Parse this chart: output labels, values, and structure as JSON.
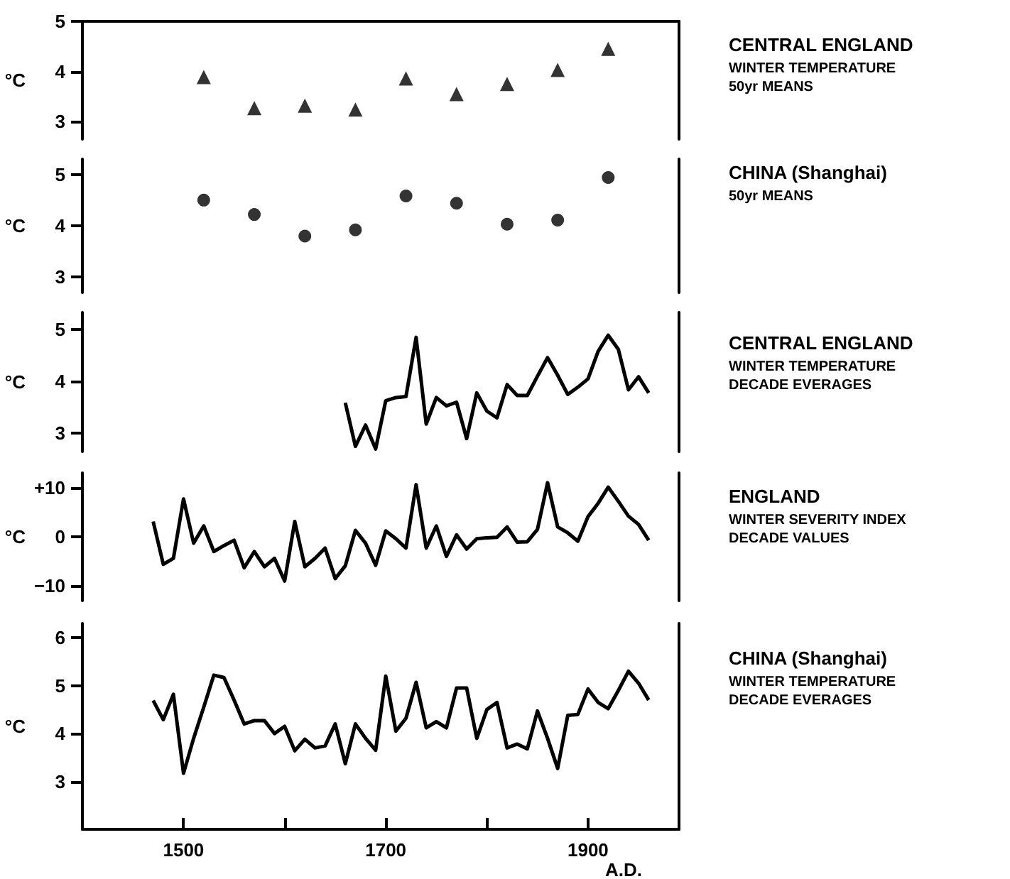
{
  "chart_data": [
    {
      "type": "scatter",
      "annotations": [
        "CENTRAL ENGLAND",
        "WINTER TEMPERATURE\n50yr MEANS"
      ],
      "ylabel": "°C",
      "marker": "triangle",
      "tick_labels": "y",
      "xlim": [
        1400,
        1990
      ],
      "ylim": [
        2.65,
        5
      ],
      "yticks": [
        3,
        4,
        5
      ],
      "x": [
        1520,
        1570,
        1620,
        1670,
        1720,
        1770,
        1820,
        1870,
        1920
      ],
      "series": [
        {
          "color": "#000000",
          "values": [
            3.89,
            3.27,
            3.32,
            3.24,
            3.86,
            3.55,
            3.75,
            4.03,
            4.45
          ]
        }
      ]
    },
    {
      "type": "scatter",
      "annotations": [
        "CHINA (Shanghai)",
        "50yr MEANS"
      ],
      "ylabel": "°C",
      "marker": "circle",
      "tick_labels": "y",
      "xlim": [
        1400,
        1990
      ],
      "ylim": [
        2.7,
        5.3
      ],
      "yticks": [
        3,
        4,
        5
      ],
      "x": [
        1520,
        1570,
        1620,
        1670,
        1720,
        1770,
        1820,
        1870,
        1920
      ],
      "series": [
        {
          "color": "#000000",
          "values": [
            4.5,
            4.22,
            3.8,
            3.92,
            4.58,
            4.44,
            4.03,
            4.11,
            4.94
          ]
        }
      ]
    },
    {
      "type": "line",
      "annotations": [
        "CENTRAL ENGLAND",
        "WINTER TEMPERATURE\nDECADE EVERAGES"
      ],
      "ylabel": "°C",
      "tick_labels": "y",
      "xlim": [
        1400,
        1990
      ],
      "ylim": [
        2.65,
        5.33
      ],
      "yticks": [
        3,
        4,
        5
      ],
      "x": [
        1660,
        1670,
        1680,
        1690,
        1700,
        1710,
        1720,
        1730,
        1740,
        1750,
        1760,
        1770,
        1780,
        1790,
        1800,
        1810,
        1820,
        1830,
        1840,
        1850,
        1860,
        1870,
        1880,
        1890,
        1900,
        1910,
        1920,
        1930,
        1940,
        1950,
        1960
      ],
      "series": [
        {
          "color": "#000000",
          "values": [
            3.59,
            2.75,
            3.16,
            2.7,
            3.63,
            3.69,
            3.71,
            4.85,
            3.18,
            3.69,
            3.53,
            3.6,
            2.9,
            3.78,
            3.43,
            3.3,
            3.94,
            3.73,
            3.73,
            4.1,
            4.46,
            4.12,
            3.75,
            3.89,
            4.05,
            4.58,
            4.89,
            4.62,
            3.84,
            4.09,
            3.78
          ]
        }
      ]
    },
    {
      "type": "line",
      "annotations": [
        "ENGLAND",
        "WINTER SEVERITY INDEX\nDECADE VALUES"
      ],
      "ylabel": "°C",
      "tick_labels": "y",
      "xlim": [
        1400,
        1990
      ],
      "ylim": [
        -13,
        13
      ],
      "yticks": [
        {
          "value": -10,
          "label": "−10"
        },
        0,
        {
          "value": 10,
          "label": "+10"
        }
      ],
      "x": [
        1470,
        1480,
        1490,
        1500,
        1510,
        1520,
        1530,
        1540,
        1550,
        1560,
        1570,
        1580,
        1590,
        1600,
        1610,
        1620,
        1630,
        1640,
        1650,
        1660,
        1670,
        1680,
        1690,
        1700,
        1710,
        1720,
        1730,
        1740,
        1750,
        1760,
        1770,
        1780,
        1790,
        1800,
        1810,
        1820,
        1830,
        1840,
        1850,
        1860,
        1870,
        1880,
        1890,
        1900,
        1910,
        1920,
        1930,
        1940,
        1950,
        1960
      ],
      "series": [
        {
          "color": "#000000",
          "values": [
            3.1,
            -5.6,
            -4.4,
            7.7,
            -1.3,
            2.2,
            -3,
            -1.8,
            -0.7,
            -6.3,
            -3,
            -6.1,
            -4.4,
            -9,
            3.1,
            -6.1,
            -4.4,
            -2.3,
            -8.5,
            -5.9,
            1.3,
            -1.3,
            -5.8,
            1.2,
            -0.4,
            -2.3,
            10.6,
            -2.3,
            2.2,
            -4,
            0.4,
            -2.5,
            -0.4,
            -0.2,
            -0.1,
            2,
            -1.1,
            -1,
            1.5,
            11,
            2,
            0.8,
            -0.9,
            4.1,
            6.8,
            10.1,
            7.2,
            4.2,
            2.5,
            -0.7
          ]
        }
      ]
    },
    {
      "type": "line",
      "annotations": [
        "CHINA (Shanghai)",
        "WINTER TEMPERATURE\nDECADE EVERAGES"
      ],
      "ylabel": "°C",
      "xlabel": "A.D.",
      "xlim": [
        1400,
        1990
      ],
      "ylim": [
        2,
        6.3
      ],
      "yticks": [
        3,
        4,
        5,
        6
      ],
      "xticks": [
        1500,
        {
          "value": 1600,
          "label": null
        },
        1700,
        {
          "value": 1800,
          "label": null
        },
        1900
      ],
      "x": [
        1470,
        1480,
        1490,
        1500,
        1510,
        1520,
        1530,
        1540,
        1550,
        1560,
        1570,
        1580,
        1590,
        1600,
        1610,
        1620,
        1630,
        1640,
        1650,
        1660,
        1670,
        1680,
        1690,
        1700,
        1710,
        1720,
        1730,
        1740,
        1750,
        1760,
        1770,
        1780,
        1790,
        1800,
        1810,
        1820,
        1830,
        1840,
        1850,
        1860,
        1870,
        1880,
        1890,
        1900,
        1910,
        1920,
        1930,
        1940,
        1950,
        1960
      ],
      "series": [
        {
          "color": "#000000",
          "values": [
            4.69,
            4.29,
            4.82,
            3.17,
            3.9,
            4.55,
            5.22,
            5.17,
            4.7,
            4.2,
            4.27,
            4.27,
            4,
            4.15,
            3.64,
            3.88,
            3.7,
            3.74,
            4.2,
            3.37,
            4.2,
            3.9,
            3.65,
            5.2,
            4.05,
            4.32,
            5.07,
            4.12,
            4.25,
            4.12,
            4.95,
            4.95,
            3.9,
            4.5,
            4.65,
            3.7,
            3.78,
            3.68,
            4.47,
            3.9,
            3.27,
            4.38,
            4.4,
            4.93,
            4.65,
            4.52,
            4.9,
            5.3,
            5.05,
            4.7
          ]
        }
      ]
    }
  ]
}
